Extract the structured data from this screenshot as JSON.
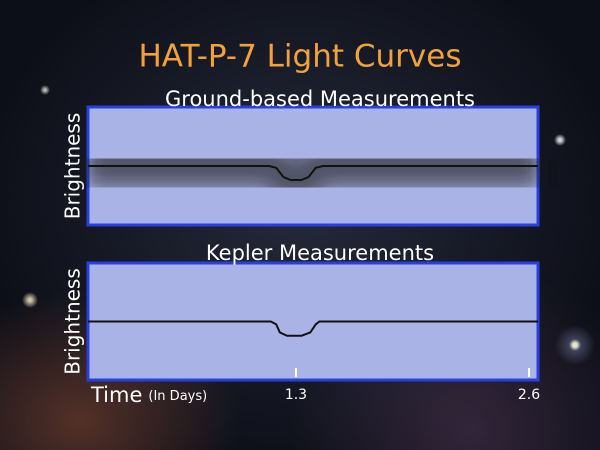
{
  "title": "HAT-P-7 Light Curves",
  "chart_data": [
    {
      "type": "band",
      "title": "Ground-based Measurements",
      "ylabel": "Brightness",
      "x": [
        0.14,
        1.15,
        1.19,
        1.23,
        1.27,
        1.33,
        1.37,
        1.41,
        1.45,
        2.65
      ],
      "series": [
        {
          "color": "#111111",
          "values": [
            1.0,
            1.0,
            0.9995,
            0.997,
            0.9962,
            0.9962,
            0.997,
            0.9995,
            1.0,
            1.0
          ]
        }
      ],
      "xlim": [
        0.14,
        2.65
      ],
      "ylim": [
        0.984,
        1.016
      ]
    },
    {
      "type": "line",
      "title": "Kepler Measurements",
      "ylabel": "Brightness",
      "x": [
        0.14,
        1.16,
        1.19,
        1.21,
        1.25,
        1.33,
        1.38,
        1.41,
        1.43,
        2.65
      ],
      "series": [
        {
          "color": "#111111",
          "values": [
            1.0,
            1.0,
            0.9992,
            0.997,
            0.9961,
            0.9961,
            0.997,
            0.9992,
            1.0,
            1.0
          ]
        }
      ],
      "xlim": [
        0.14,
        2.65
      ],
      "ylim": [
        0.984,
        1.016
      ],
      "xticks": [
        1.3,
        2.6
      ],
      "xlabel": "Time",
      "xlabel_unit": "(In Days)"
    }
  ]
}
